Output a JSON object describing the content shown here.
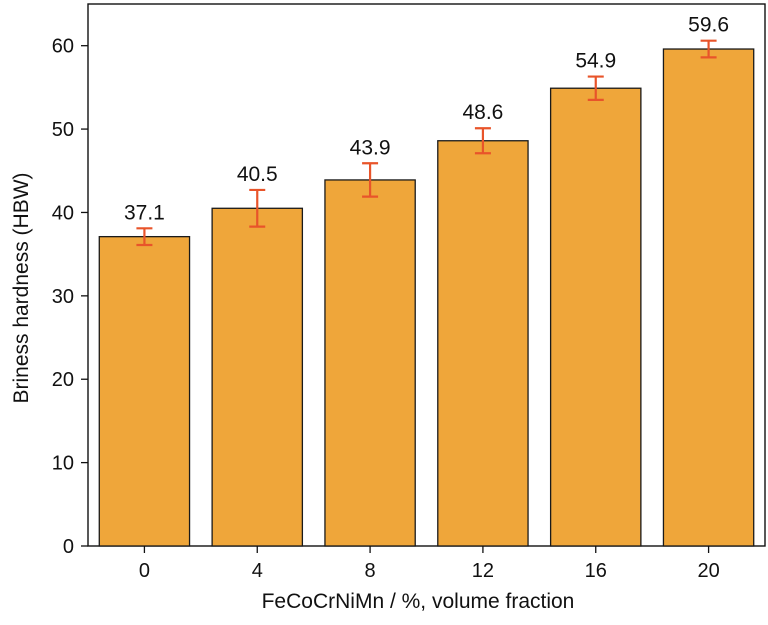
{
  "chart_data": {
    "type": "bar",
    "title": "",
    "xlabel": "FeCoCrNiMn / %, volume fraction",
    "ylabel": "Briness hardness (HBW)",
    "categories": [
      "0",
      "4",
      "8",
      "12",
      "16",
      "20"
    ],
    "values": [
      37.1,
      40.5,
      43.9,
      48.6,
      54.9,
      59.6
    ],
    "errors": [
      1.0,
      2.2,
      2.0,
      1.5,
      1.4,
      1.0
    ],
    "data_labels": [
      "37.1",
      "40.5",
      "43.9",
      "48.6",
      "54.9",
      "59.6"
    ],
    "ylim": [
      0,
      65
    ],
    "yticks": [
      0,
      10,
      20,
      30,
      40,
      50,
      60
    ],
    "ytick_labels": [
      "0",
      "10",
      "20",
      "30",
      "40",
      "50",
      "60"
    ],
    "grid": false,
    "legend": "none",
    "colors": {
      "bar_fill": "#EFA63A",
      "bar_edge": "#1a1a1a",
      "error_bar": "#E8542A",
      "axis": "#111111"
    }
  }
}
